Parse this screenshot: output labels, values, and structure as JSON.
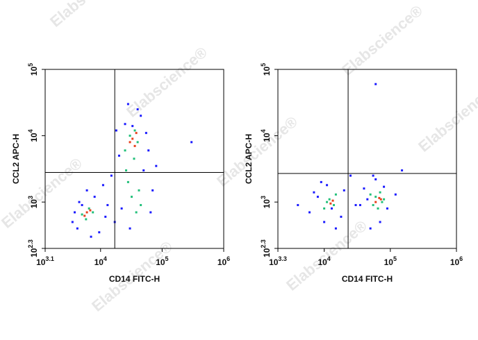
{
  "watermark": "Elabscience®",
  "chart_data": [
    {
      "type": "scatter",
      "x_label": "CD14 FITC-H",
      "y_label": "CCL2 APC-H",
      "xscale": "log",
      "yscale": "log",
      "xlim": [
        1259,
        1000000
      ],
      "ylim": [
        200,
        100000
      ],
      "xticks": [
        {
          "value": 1259,
          "label": "10",
          "power": "3.1"
        },
        {
          "value": 10000,
          "label": "10",
          "power": "4"
        },
        {
          "value": 100000,
          "label": "10",
          "power": "5"
        },
        {
          "value": 1000000,
          "label": "10",
          "power": "6"
        }
      ],
      "yticks": [
        {
          "value": 200,
          "label": "10",
          "power": "2.3"
        },
        {
          "value": 1000,
          "label": "10",
          "power": "3"
        },
        {
          "value": 10000,
          "label": "10",
          "power": "4"
        },
        {
          "value": 100000,
          "label": "10",
          "power": "5"
        }
      ],
      "gates": {
        "x": 17000,
        "y": 2800
      },
      "series": [
        {
          "color": "#1a1aff",
          "x": [
            3500,
            4200,
            5000,
            8000,
            9500,
            12000,
            3800,
            7000,
            15000,
            20000,
            25000,
            45000,
            60000,
            70000,
            30000,
            22000,
            50000,
            18000,
            11000,
            6000,
            40000,
            65000,
            28000,
            4500,
            13000,
            55000,
            33000,
            80000,
            300000,
            17000
          ],
          "y": [
            500,
            400,
            900,
            1200,
            350,
            600,
            700,
            300,
            2500,
            5000,
            15000,
            20000,
            6000,
            1500,
            400,
            800,
            3000,
            12000,
            1800,
            1500,
            25000,
            700,
            30000,
            1000,
            900,
            11000,
            14000,
            3500,
            8000,
            500
          ]
        },
        {
          "color": "#22c07a",
          "x": [
            5000,
            6500,
            7500,
            5800,
            25000,
            30000,
            40000,
            35000,
            28000,
            45000,
            32000,
            38000,
            42000,
            26000,
            36000
          ],
          "y": [
            650,
            800,
            700,
            550,
            6000,
            10000,
            8000,
            4500,
            2000,
            900,
            1200,
            700,
            1500,
            3000,
            12000
          ]
        },
        {
          "color": "#e8401c",
          "x": [
            6000,
            6800,
            5500,
            33000,
            38000,
            30000,
            36000
          ],
          "y": [
            700,
            750,
            620,
            9000,
            11000,
            8000,
            7000
          ]
        }
      ]
    },
    {
      "type": "scatter",
      "x_label": "CD14 FITC-H",
      "y_label": "CCL2 APC-H",
      "xscale": "log",
      "yscale": "log",
      "xlim": [
        1995,
        1000000
      ],
      "ylim": [
        200,
        100000
      ],
      "xticks": [
        {
          "value": 1995,
          "label": "10",
          "power": "3.3"
        },
        {
          "value": 10000,
          "label": "10",
          "power": "4"
        },
        {
          "value": 100000,
          "label": "10",
          "power": "5"
        },
        {
          "value": 1000000,
          "label": "10",
          "power": "6"
        }
      ],
      "yticks": [
        {
          "value": 200,
          "label": "10",
          "power": "2.3"
        },
        {
          "value": 1000,
          "label": "10",
          "power": "3"
        },
        {
          "value": 10000,
          "label": "10",
          "power": "4"
        },
        {
          "value": 100000,
          "label": "10",
          "power": "5"
        }
      ],
      "gates": {
        "x": 23000,
        "y": 2700
      },
      "series": [
        {
          "color": "#1a1aff",
          "x": [
            4000,
            6000,
            8000,
            10000,
            15000,
            20000,
            9000,
            11000,
            18000,
            25000,
            35000,
            50000,
            60000,
            80000,
            90000,
            45000,
            70000,
            120000,
            150000,
            13000,
            60000,
            30000,
            7000,
            40000,
            55000
          ],
          "y": [
            900,
            700,
            1200,
            500,
            400,
            1500,
            2000,
            1800,
            600,
            2500,
            900,
            400,
            2200,
            1700,
            800,
            1100,
            500,
            1300,
            3000,
            800,
            60000,
            900,
            1400,
            1600,
            2500
          ]
        },
        {
          "color": "#22c07a",
          "x": [
            10000,
            12000,
            14000,
            15000,
            11000,
            55000,
            60000,
            70000,
            75000,
            65000,
            80000,
            50000
          ],
          "y": [
            800,
            1100,
            900,
            1300,
            1000,
            900,
            1200,
            1400,
            1000,
            800,
            1100,
            1300
          ]
        },
        {
          "color": "#e8401c",
          "x": [
            12500,
            13500,
            60000,
            68000,
            72000
          ],
          "y": [
            950,
            1050,
            1000,
            1150,
            1100
          ]
        }
      ]
    }
  ]
}
